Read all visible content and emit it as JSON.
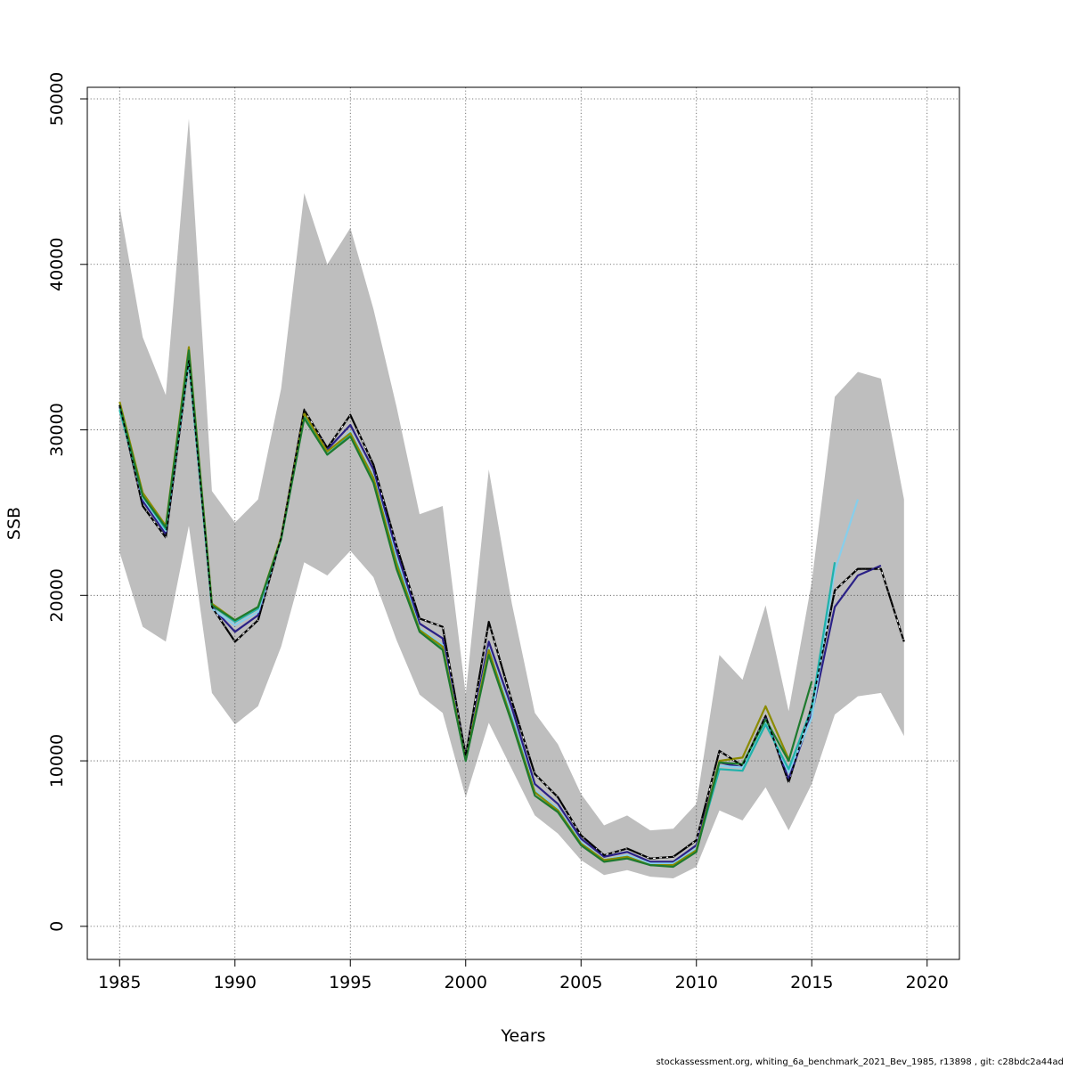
{
  "chart_data": {
    "type": "line",
    "xlabel": "Years",
    "ylabel": "SSB",
    "xlim": [
      1983.6,
      2021.4
    ],
    "ylim": [
      -2000,
      50700
    ],
    "x_ticks": [
      1985,
      1990,
      1995,
      2000,
      2005,
      2010,
      2015,
      2020
    ],
    "x_tick_labels": [
      "1985",
      "1990",
      "1995",
      "2000",
      "2005",
      "2010",
      "2015",
      "2020"
    ],
    "y_ticks": [
      0,
      10000,
      20000,
      30000,
      40000,
      50000
    ],
    "y_tick_labels": [
      "0",
      "10000",
      "20000",
      "30000",
      "40000",
      "50000"
    ],
    "grid": true,
    "grid_style": "dotted",
    "confidence_band": {
      "color": "#bebebe",
      "x": [
        1985,
        1986,
        1987,
        1988,
        1989,
        1990,
        1991,
        1992,
        1993,
        1994,
        1995,
        1996,
        1997,
        1998,
        1999,
        2000,
        2001,
        2002,
        2003,
        2004,
        2005,
        2006,
        2007,
        2008,
        2009,
        2010,
        2011,
        2012,
        2013,
        2014,
        2015,
        2016,
        2017,
        2018,
        2019
      ],
      "upper": [
        43500,
        35600,
        32100,
        48800,
        26300,
        24400,
        25800,
        32500,
        44300,
        40000,
        42200,
        37300,
        31400,
        24900,
        25400,
        14000,
        27600,
        19500,
        12900,
        11000,
        8000,
        6100,
        6700,
        5800,
        5900,
        7400,
        16400,
        14900,
        19400,
        13000,
        20800,
        32000,
        33500,
        33100,
        25800
      ],
      "lower": [
        22600,
        18100,
        17200,
        24200,
        14100,
        12200,
        13300,
        16900,
        22000,
        21200,
        22700,
        21100,
        17300,
        14000,
        12900,
        7800,
        12300,
        9500,
        6700,
        5600,
        4000,
        3100,
        3400,
        3000,
        2900,
        3600,
        7000,
        6400,
        8400,
        5800,
        8600,
        12800,
        13900,
        14100,
        11500
      ]
    },
    "series": [
      {
        "color": "#000000",
        "dashed_overlay": true,
        "x": [
          1985,
          1986,
          1987,
          1988,
          1989,
          1990,
          1991,
          1992,
          1993,
          1994,
          1995,
          1996,
          1997,
          1998,
          1999,
          2000,
          2001,
          2002,
          2003,
          2004,
          2005,
          2006,
          2007,
          2008,
          2009,
          2010,
          2011,
          2012,
          2013,
          2014,
          2015,
          2016,
          2017,
          2018,
          2019
        ],
        "values": [
          31500,
          25400,
          23500,
          34200,
          19300,
          17200,
          18500,
          23500,
          31200,
          28900,
          30900,
          27900,
          23000,
          18600,
          18100,
          10300,
          18400,
          13600,
          9200,
          7800,
          5500,
          4300,
          4700,
          4100,
          4200,
          5200,
          10600,
          9700,
          12700,
          8700,
          13300,
          20300,
          21600,
          21600,
          17200
        ]
      },
      {
        "color": "#2b2187",
        "x": [
          1985,
          1986,
          1987,
          1988,
          1989,
          1990,
          1991,
          1992,
          1993,
          1994,
          1995,
          1996,
          1997,
          1998,
          1999,
          2000,
          2001,
          2002,
          2003,
          2004,
          2005,
          2006,
          2007,
          2008,
          2009,
          2010,
          2011,
          2012,
          2013,
          2014,
          2015,
          2016,
          2017,
          2018
        ],
        "values": [
          31400,
          25700,
          23700,
          34300,
          19300,
          17800,
          18800,
          23500,
          31000,
          28800,
          30300,
          27600,
          22700,
          18300,
          17400,
          10200,
          17200,
          13200,
          8600,
          7400,
          5300,
          4200,
          4500,
          3900,
          3900,
          4900,
          9900,
          9600,
          12600,
          8900,
          12800,
          19300,
          21200,
          21800
        ]
      },
      {
        "color": "#87ceeb",
        "x": [
          1985,
          1986,
          1987,
          1988,
          1989,
          1990,
          1991,
          1992,
          1993,
          1994,
          1995,
          1996,
          1997,
          1998,
          1999,
          2000,
          2001,
          2002,
          2003,
          2004,
          2005,
          2006,
          2007,
          2008,
          2009,
          2010,
          2011,
          2012,
          2013,
          2014,
          2015,
          2016,
          2017
        ],
        "values": [
          31300,
          25900,
          23900,
          34200,
          19200,
          18200,
          19000,
          23400,
          30800,
          28600,
          29900,
          27200,
          22200,
          18000,
          17000,
          10100,
          16800,
          12700,
          8200,
          7100,
          5100,
          4000,
          4300,
          3800,
          3800,
          4700,
          9700,
          9600,
          12300,
          9300,
          12600,
          21500,
          25800
        ]
      },
      {
        "color": "#20b2aa",
        "x": [
          1985,
          1986,
          1987,
          1988,
          1989,
          1990,
          1991,
          1992,
          1993,
          1994,
          1995,
          1996,
          1997,
          1998,
          1999,
          2000,
          2001,
          2002,
          2003,
          2004,
          2005,
          2006,
          2007,
          2008,
          2009,
          2010,
          2011,
          2012,
          2013,
          2014,
          2015,
          2016
        ],
        "values": [
          31200,
          26000,
          24000,
          34300,
          19400,
          18400,
          19200,
          23400,
          30800,
          28500,
          29700,
          27000,
          22000,
          17900,
          16800,
          10000,
          16600,
          12500,
          8100,
          7000,
          5000,
          4000,
          4200,
          3700,
          3700,
          4600,
          9500,
          9400,
          12200,
          9500,
          13200,
          22000
        ]
      },
      {
        "color": "#8b8b00",
        "x": [
          1985,
          1986,
          1987,
          1988,
          1989,
          1990,
          1991,
          1992,
          1993,
          1994,
          1995,
          1996,
          1997,
          1998,
          1999,
          2000,
          2001,
          2002,
          2003,
          2004,
          2005,
          2006,
          2007,
          2008,
          2009,
          2010,
          2011,
          2012,
          2013,
          2014
        ],
        "values": [
          31700,
          26200,
          24200,
          35000,
          19500,
          18500,
          19300,
          23500,
          31000,
          28700,
          29800,
          27100,
          21900,
          17900,
          16900,
          10100,
          16700,
          12400,
          8100,
          7000,
          5000,
          4000,
          4200,
          3700,
          3700,
          4600,
          10000,
          10200,
          13300,
          10100
        ]
      },
      {
        "color": "#1e7a2e",
        "x": [
          1985,
          1986,
          1987,
          1988,
          1989,
          1990,
          1991,
          1992,
          1993,
          1994,
          1995,
          1996,
          1997,
          1998,
          1999,
          2000,
          2001,
          2002,
          2003,
          2004,
          2005,
          2006,
          2007,
          2008,
          2009,
          2010,
          2011,
          2012,
          2013,
          2014,
          2015
        ],
        "values": [
          31500,
          26000,
          24100,
          34800,
          19400,
          18500,
          19300,
          23400,
          30700,
          28500,
          29600,
          26800,
          21600,
          17800,
          16700,
          10000,
          16400,
          12300,
          7900,
          6900,
          4900,
          3900,
          4100,
          3700,
          3600,
          4500,
          9900,
          9800,
          12500,
          10000,
          14800
        ]
      }
    ]
  },
  "footer": {
    "source_note": "stockassessment.org, whiting_6a_benchmark_2021_Bev_1985, r13898 , git: c28bdc2a44ad"
  }
}
